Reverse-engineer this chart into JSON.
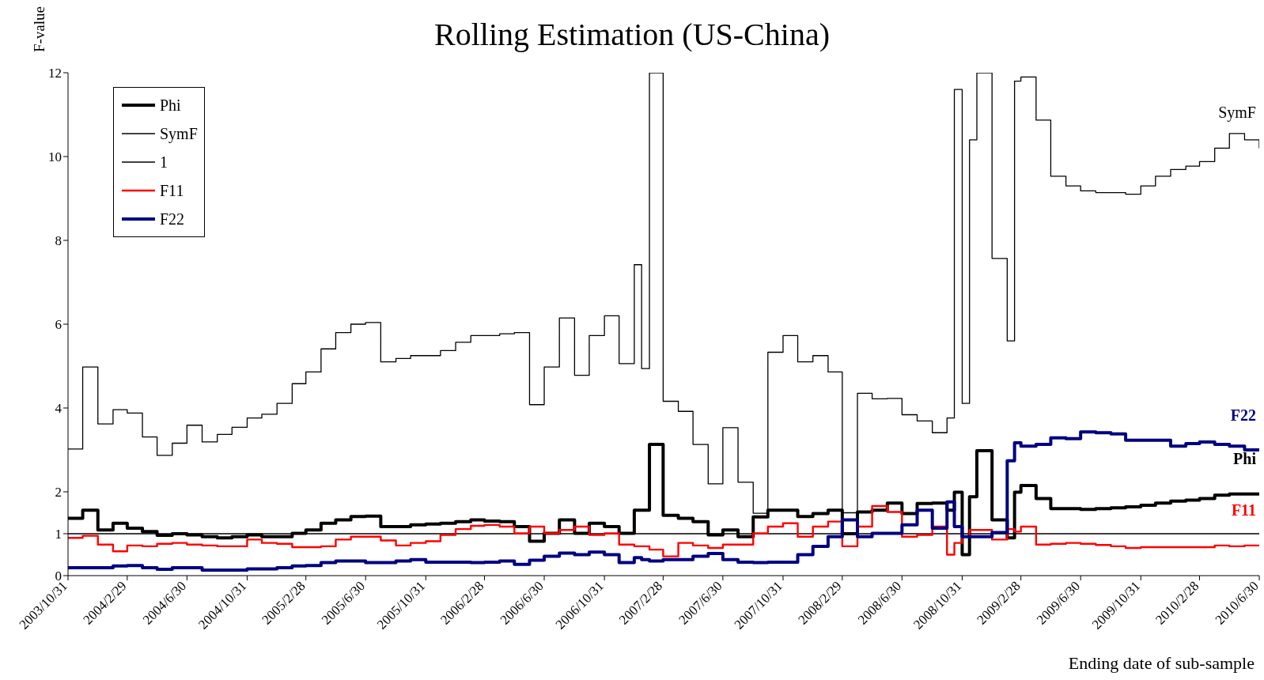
{
  "chart_data": {
    "type": "step",
    "title": "Rolling Estimation (US-China)",
    "xlabel": "Ending date of sub-sample",
    "ylabel": "F-value",
    "x": [
      "2003-10-31",
      "2003-11-30",
      "2003-12-31",
      "2004-01-31",
      "2004-02-29",
      "2004-03-31",
      "2004-04-30",
      "2004-05-31",
      "2004-06-30",
      "2004-07-31",
      "2004-08-31",
      "2004-09-30",
      "2004-10-31",
      "2004-11-30",
      "2004-12-31",
      "2005-01-31",
      "2005-02-28",
      "2005-03-31",
      "2005-04-30",
      "2005-05-31",
      "2005-06-30",
      "2005-07-31",
      "2005-08-31",
      "2005-09-30",
      "2005-10-31",
      "2005-11-30",
      "2005-12-31",
      "2006-01-31",
      "2006-02-28",
      "2006-03-31",
      "2006-04-30",
      "2006-05-31",
      "2006-06-30",
      "2006-07-31",
      "2006-08-31",
      "2006-09-30",
      "2006-10-31",
      "2006-11-30",
      "2006-12-31",
      "2007-01-15",
      "2007-01-31",
      "2007-02-28",
      "2007-03-31",
      "2007-04-30",
      "2007-05-31",
      "2007-06-30",
      "2007-07-31",
      "2007-08-31",
      "2007-09-30",
      "2007-10-31",
      "2007-11-30",
      "2007-12-31",
      "2008-01-31",
      "2008-02-29",
      "2008-03-31",
      "2008-04-30",
      "2008-05-31",
      "2008-06-30",
      "2008-07-31",
      "2008-08-31",
      "2008-09-30",
      "2008-10-15",
      "2008-10-31",
      "2008-11-15",
      "2008-11-30",
      "2008-12-31",
      "2009-01-31",
      "2009-02-15",
      "2009-02-28",
      "2009-03-31",
      "2009-04-30",
      "2009-05-31",
      "2009-06-30",
      "2009-07-31",
      "2009-08-31",
      "2009-09-30",
      "2009-10-31",
      "2009-11-30",
      "2009-12-31",
      "2010-01-31",
      "2010-02-28",
      "2010-03-31",
      "2010-04-30",
      "2010-05-31",
      "2010-06-30"
    ],
    "series": [
      {
        "name": "Phi",
        "color": "#000000",
        "values": [
          1.37,
          1.56,
          1.09,
          1.25,
          1.13,
          1.05,
          0.96,
          1.0,
          0.97,
          0.93,
          0.9,
          0.93,
          0.97,
          0.93,
          0.93,
          1.01,
          1.09,
          1.25,
          1.33,
          1.41,
          1.42,
          1.17,
          1.17,
          1.21,
          1.23,
          1.25,
          1.29,
          1.33,
          1.3,
          1.29,
          1.17,
          0.82,
          1.01,
          1.33,
          1.01,
          1.25,
          1.17,
          1.01,
          1.56,
          1.56,
          3.13,
          1.44,
          1.37,
          1.29,
          0.97,
          1.09,
          0.93,
          1.4,
          1.56,
          1.56,
          1.41,
          1.48,
          1.56,
          1.0,
          1.52,
          1.56,
          1.73,
          1.48,
          1.72,
          1.73,
          1.56,
          1.99,
          0.5,
          1.88,
          2.98,
          1.33,
          0.9,
          1.99,
          2.15,
          1.84,
          1.6,
          1.6,
          1.58,
          1.6,
          1.62,
          1.64,
          1.68,
          1.73,
          1.78,
          1.8,
          1.84,
          1.92,
          1.95,
          1.95,
          1.95
        ]
      },
      {
        "name": "SymF",
        "color": "#000000",
        "values": [
          3.02,
          4.98,
          3.62,
          3.96,
          3.88,
          3.31,
          2.87,
          3.16,
          3.59,
          3.19,
          3.37,
          3.54,
          3.76,
          3.85,
          4.11,
          4.58,
          4.86,
          5.41,
          5.8,
          6.0,
          6.04,
          5.1,
          5.18,
          5.25,
          5.25,
          5.37,
          5.57,
          5.73,
          5.73,
          5.77,
          5.8,
          4.08,
          4.98,
          6.15,
          4.78,
          5.73,
          6.2,
          5.06,
          7.42,
          4.94,
          12,
          4.16,
          3.92,
          3.13,
          2.19,
          3.53,
          2.23,
          1.49,
          5.33,
          5.73,
          5.1,
          5.25,
          4.86,
          1.5,
          4.35,
          4.22,
          4.23,
          3.84,
          3.69,
          3.41,
          3.76,
          11.6,
          4.11,
          10.4,
          12,
          7.57,
          5.6,
          11.8,
          11.9,
          10.87,
          9.53,
          9.3,
          9.18,
          9.14,
          9.14,
          9.1,
          9.3,
          9.53,
          9.69,
          9.77,
          9.88,
          10.2,
          10.55,
          10.4,
          10.2
        ]
      },
      {
        "name": "1",
        "color": "#000000",
        "values": [
          1,
          1,
          1,
          1,
          1,
          1,
          1,
          1,
          1,
          1,
          1,
          1,
          1,
          1,
          1,
          1,
          1,
          1,
          1,
          1,
          1,
          1,
          1,
          1,
          1,
          1,
          1,
          1,
          1,
          1,
          1,
          1,
          1,
          1,
          1,
          1,
          1,
          1,
          1,
          1,
          1,
          1,
          1,
          1,
          1,
          1,
          1,
          1,
          1,
          1,
          1,
          1,
          1,
          1,
          1,
          1,
          1,
          1,
          1,
          1,
          1,
          1,
          1,
          1,
          1,
          1,
          1,
          1,
          1,
          1,
          1,
          1,
          1,
          1,
          1,
          1,
          1,
          1,
          1,
          1,
          1,
          1,
          1,
          1,
          1
        ]
      },
      {
        "name": "F11",
        "color": "#ff0000",
        "values": [
          0.9,
          0.95,
          0.74,
          0.58,
          0.72,
          0.7,
          0.76,
          0.78,
          0.74,
          0.72,
          0.7,
          0.7,
          0.86,
          0.78,
          0.76,
          0.68,
          0.68,
          0.7,
          0.86,
          0.93,
          0.93,
          0.84,
          0.72,
          0.78,
          0.82,
          0.97,
          1.11,
          1.19,
          1.21,
          1.17,
          1.01,
          1.17,
          1.01,
          1.09,
          1.17,
          0.97,
          1.01,
          0.74,
          0.7,
          0.7,
          0.62,
          0.46,
          0.78,
          0.72,
          0.66,
          0.74,
          0.74,
          1.01,
          1.17,
          1.25,
          0.93,
          1.17,
          1.29,
          0.7,
          1.17,
          1.66,
          1.52,
          0.93,
          0.97,
          1.17,
          0.5,
          0.78,
          0.93,
          1.09,
          1.09,
          0.86,
          1.11,
          1.05,
          1.17,
          0.74,
          0.76,
          0.78,
          0.76,
          0.73,
          0.7,
          0.66,
          0.68,
          0.68,
          0.68,
          0.68,
          0.68,
          0.72,
          0.7,
          0.72,
          0.72
        ]
      },
      {
        "name": "F22",
        "color": "#000080",
        "values": [
          0.19,
          0.19,
          0.19,
          0.23,
          0.24,
          0.19,
          0.15,
          0.19,
          0.19,
          0.13,
          0.13,
          0.13,
          0.16,
          0.16,
          0.19,
          0.23,
          0.24,
          0.31,
          0.35,
          0.35,
          0.31,
          0.31,
          0.35,
          0.38,
          0.32,
          0.32,
          0.32,
          0.31,
          0.32,
          0.35,
          0.27,
          0.37,
          0.46,
          0.54,
          0.5,
          0.56,
          0.5,
          0.31,
          0.43,
          0.38,
          0.35,
          0.38,
          0.38,
          0.46,
          0.53,
          0.38,
          0.32,
          0.31,
          0.32,
          0.32,
          0.5,
          0.7,
          0.93,
          1.33,
          0.93,
          1.01,
          1.01,
          1.21,
          1.56,
          1.13,
          1.76,
          1.17,
          0.93,
          0.93,
          0.93,
          1.03,
          2.74,
          3.17,
          3.09,
          3.13,
          3.29,
          3.27,
          3.43,
          3.41,
          3.38,
          3.23,
          3.23,
          3.23,
          3.09,
          3.15,
          3.19,
          3.13,
          3.09,
          3.0,
          2.98
        ]
      }
    ],
    "annotations": [
      {
        "text": "SymF",
        "x": "2010-06-30",
        "y": 10.2
      },
      {
        "text": "F22",
        "x": "2010-06-30",
        "y": 2.98
      },
      {
        "text": "Phi",
        "x": "2010-06-30",
        "y": 1.95
      },
      {
        "text": "F11",
        "x": "2010-06-30",
        "y": 0.72
      }
    ],
    "xlim": [
      "2003-10-31",
      "2010-06-30"
    ],
    "xticks": [
      {
        "value": "2003-10-31",
        "label": "2003/10/31"
      },
      {
        "value": "2004-02-29",
        "label": "2004/2/29"
      },
      {
        "value": "2004-06-30",
        "label": "2004/6/30"
      },
      {
        "value": "2004-10-31",
        "label": "2004/10/31"
      },
      {
        "value": "2005-02-28",
        "label": "2005/2/28"
      },
      {
        "value": "2005-06-30",
        "label": "2005/6/30"
      },
      {
        "value": "2005-10-31",
        "label": "2005/10/31"
      },
      {
        "value": "2006-02-28",
        "label": "2006/2/28"
      },
      {
        "value": "2006-06-30",
        "label": "2006/6/30"
      },
      {
        "value": "2006-10-31",
        "label": "2006/10/31"
      },
      {
        "value": "2007-02-28",
        "label": "2007/2/28"
      },
      {
        "value": "2007-06-30",
        "label": "2007/6/30"
      },
      {
        "value": "2007-10-31",
        "label": "2007/10/31"
      },
      {
        "value": "2008-02-29",
        "label": "2008/2/29"
      },
      {
        "value": "2008-06-30",
        "label": "2008/6/30"
      },
      {
        "value": "2008-10-31",
        "label": "2008/10/31"
      },
      {
        "value": "2009-02-28",
        "label": "2009/2/28"
      },
      {
        "value": "2009-06-30",
        "label": "2009/6/30"
      },
      {
        "value": "2009-10-31",
        "label": "2009/10/31"
      },
      {
        "value": "2010-02-28",
        "label": "2010/2/28"
      },
      {
        "value": "2010-06-30",
        "label": "2010/6/30"
      }
    ],
    "ylim": [
      0,
      12
    ],
    "yticks": [
      0,
      1,
      2,
      4,
      6,
      8,
      10,
      12
    ],
    "legend": "top left",
    "marker": "none",
    "line_style": "solid"
  }
}
